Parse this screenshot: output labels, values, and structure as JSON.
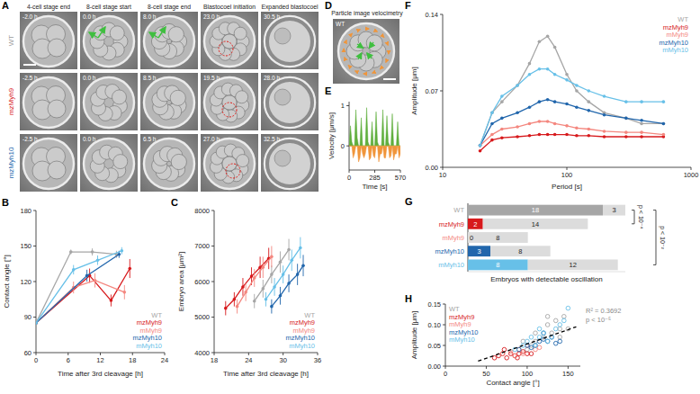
{
  "panel_labels": [
    "A",
    "B",
    "C",
    "D",
    "E",
    "F",
    "G",
    "H"
  ],
  "panel_a": {
    "columns": [
      "4-cell stage end",
      "8-cell stage start",
      "8-cell stage end",
      "Blastocoel initiation",
      "Expanded blastocoel"
    ],
    "rows": [
      {
        "label": "WT",
        "color": "#9a9a9a",
        "times": [
          "-2.0 h",
          "0.0 h",
          "8.0 h",
          "23.0 h",
          "30.5 h"
        ]
      },
      {
        "label": "mzMyh9",
        "color": "#d7191c",
        "times": [
          "-2.5 h",
          "0.0 h",
          "8.5 h",
          "19.5 h",
          "28.0 h"
        ]
      },
      {
        "label": "mzMyh10",
        "color": "#2166ac",
        "times": [
          "-2.5 h",
          "0.0 h",
          "6.5 h",
          "27.0 h",
          "32.5 h"
        ]
      }
    ]
  },
  "panel_d": {
    "title": "Particle image velocimetry",
    "label": "WT"
  },
  "chart_data": [
    {
      "type": "line",
      "x_label": "Time after 3rd cleavage [h]",
      "y_label": "Contact angle [°]",
      "xlim": [
        0,
        24
      ],
      "xticks": [
        0,
        6,
        12,
        18,
        24
      ],
      "ylim": [
        60,
        180
      ],
      "yticks": [
        60,
        90,
        120,
        150,
        180
      ],
      "legend": "bottom-right",
      "marker": "circle",
      "series": [
        {
          "name": "WT",
          "color": "#a6a6a6",
          "x": [
            0,
            6.5,
            10.5,
            15
          ],
          "values": [
            85,
            145,
            145,
            143
          ],
          "errors": [
            1,
            2,
            3,
            3
          ]
        },
        {
          "name": "mzMyh9",
          "color": "#d7191c",
          "x": [
            0,
            10,
            14,
            17.5
          ],
          "values": [
            85,
            125,
            104,
            131
          ],
          "errors": [
            1,
            6,
            5,
            8
          ]
        },
        {
          "name": "mMyh9",
          "color": "#f4877f",
          "x": [
            0,
            7,
            11,
            16.5
          ],
          "values": [
            85,
            115,
            121,
            111
          ],
          "errors": [
            1,
            5,
            6,
            6
          ]
        },
        {
          "name": "mzMyh10",
          "color": "#2166ac",
          "x": [
            0,
            9.5,
            15.5
          ],
          "values": [
            85,
            125,
            143
          ],
          "errors": [
            1,
            5,
            3
          ]
        },
        {
          "name": "mMyh10",
          "color": "#67c0e8",
          "x": [
            0,
            7,
            11.5,
            16
          ],
          "values": [
            85,
            130,
            138,
            146
          ],
          "errors": [
            1,
            4,
            4,
            3
          ]
        }
      ]
    },
    {
      "type": "line",
      "x_label": "Time after 3rd cleavage [h]",
      "y_label": "Embryo area [μm²]",
      "xlim": [
        18,
        36
      ],
      "xticks": [
        18,
        24,
        30,
        36
      ],
      "ylim": [
        4000,
        8000
      ],
      "yticks": [
        4000,
        5000,
        6000,
        7000,
        8000
      ],
      "legend": "bottom-right",
      "marker": "circle",
      "series": [
        {
          "name": "WT",
          "color": "#a6a6a6",
          "x": [
            25,
            26.5,
            28,
            29.5,
            31
          ],
          "values": [
            5450,
            5800,
            6200,
            6550,
            6900
          ],
          "errors": [
            200,
            250,
            250,
            300,
            300
          ]
        },
        {
          "name": "mzMyh9",
          "color": "#d7191c",
          "x": [
            20,
            21.5,
            23,
            24.5,
            26,
            27.5
          ],
          "values": [
            5250,
            5500,
            5850,
            6150,
            6400,
            6650
          ],
          "errors": [
            200,
            200,
            250,
            250,
            300,
            300
          ]
        },
        {
          "name": "mMyh9",
          "color": "#f4877f",
          "x": [
            22,
            23.5,
            25,
            26.5,
            28
          ],
          "values": [
            5300,
            5700,
            6100,
            6400,
            6700
          ],
          "errors": [
            200,
            250,
            250,
            300,
            300
          ]
        },
        {
          "name": "mzMyh10",
          "color": "#2166ac",
          "x": [
            28,
            29.5,
            31,
            32.5,
            33.5
          ],
          "values": [
            5300,
            5600,
            5950,
            6200,
            6450
          ],
          "errors": [
            200,
            250,
            250,
            300,
            300
          ]
        },
        {
          "name": "mMyh10",
          "color": "#67c0e8",
          "x": [
            27,
            28.5,
            30,
            31.5,
            33
          ],
          "values": [
            5500,
            5850,
            6200,
            6600,
            6950
          ],
          "errors": [
            200,
            250,
            250,
            300,
            300
          ]
        }
      ]
    },
    {
      "type": "area",
      "x_label": "Time [s]",
      "y_label": "Velocity [μm/s]",
      "xlim": [
        0,
        570
      ],
      "xticks": [
        0,
        285,
        570
      ],
      "ylim": [
        -0.6,
        1.1
      ],
      "yticks": [
        0,
        1
      ],
      "x": [
        0,
        15,
        30,
        45,
        60,
        75,
        90,
        105,
        120,
        135,
        150,
        165,
        180,
        195,
        210,
        225,
        240,
        255,
        270,
        285,
        300,
        315,
        330,
        345,
        360,
        375,
        390,
        405,
        420,
        435,
        450,
        465,
        480,
        495,
        510,
        525,
        540,
        555,
        570
      ],
      "series": [
        {
          "color": "#5fae3c",
          "values": [
            0,
            0.5,
            0.1,
            0,
            0,
            0.9,
            0.2,
            0,
            0,
            0.7,
            0,
            0,
            0,
            0.95,
            0.1,
            0,
            0,
            0.6,
            0,
            0,
            0.85,
            0.1,
            0,
            0,
            0,
            0.9,
            0,
            0,
            0.75,
            0.1,
            0,
            0,
            0.8,
            0,
            0,
            0,
            0.6,
            0,
            0
          ]
        },
        {
          "color": "#f0953a",
          "values": [
            0,
            0,
            0,
            -0.3,
            -0.2,
            0,
            0,
            -0.4,
            -0.3,
            0,
            -0.2,
            -0.3,
            -0.2,
            0,
            0,
            -0.35,
            -0.3,
            0,
            -0.25,
            -0.3,
            0,
            0,
            -0.4,
            -0.2,
            -0.2,
            0,
            -0.3,
            -0.3,
            0,
            0,
            -0.3,
            -0.25,
            0,
            -0.35,
            -0.2,
            -0.2,
            0,
            -0.3,
            -0.2
          ]
        }
      ]
    },
    {
      "type": "line",
      "log": "x",
      "x_label": "Period [s]",
      "y_label": "Amplitude [μm]",
      "xlim": [
        10,
        1000
      ],
      "xticks": [
        10,
        100,
        1000
      ],
      "ylim": [
        0,
        0.14
      ],
      "yticks": [
        {
          "value": 0,
          "label": "0.00"
        },
        0.07,
        0.14
      ],
      "legend": "top-right",
      "marker": "circle",
      "x": [
        20,
        25,
        30,
        40,
        50,
        60,
        70,
        80,
        100,
        120,
        150,
        200,
        300,
        400,
        600
      ],
      "series": [
        {
          "name": "WT",
          "color": "#a6a6a6",
          "values": [
            0.02,
            0.05,
            0.06,
            0.075,
            0.095,
            0.115,
            0.12,
            0.11,
            0.085,
            0.07,
            0.06,
            0.05,
            0.045,
            0.04,
            0.04
          ]
        },
        {
          "name": "mzMyh9",
          "color": "#d7191c",
          "values": [
            0.015,
            0.025,
            0.027,
            0.028,
            0.029,
            0.03,
            0.03,
            0.03,
            0.03,
            0.029,
            0.029,
            0.028,
            0.028,
            0.028,
            0.028
          ]
        },
        {
          "name": "mMyh9",
          "color": "#f4877f",
          "values": [
            0.02,
            0.03,
            0.035,
            0.037,
            0.04,
            0.042,
            0.042,
            0.04,
            0.038,
            0.036,
            0.035,
            0.033,
            0.032,
            0.032,
            0.03
          ]
        },
        {
          "name": "mzMyh10",
          "color": "#2166ac",
          "values": [
            0.02,
            0.04,
            0.045,
            0.05,
            0.055,
            0.06,
            0.062,
            0.06,
            0.058,
            0.055,
            0.052,
            0.048,
            0.045,
            0.043,
            0.04
          ]
        },
        {
          "name": "mMyh10",
          "color": "#67c0e8",
          "values": [
            0.02,
            0.05,
            0.065,
            0.075,
            0.085,
            0.09,
            0.09,
            0.085,
            0.08,
            0.075,
            0.07,
            0.065,
            0.06,
            0.06,
            0.06
          ]
        }
      ]
    },
    {
      "type": "bar",
      "orientation": "horizontal",
      "stacked": true,
      "data_labels": true,
      "tick_labels": false,
      "title": "Embryos with detectable oscillation",
      "categories": [
        "WT",
        "mzMyh9",
        "mMyh9",
        "mzMyh10",
        "mMyh10"
      ],
      "xlim": [
        0,
        21
      ],
      "series": [
        {
          "colors": [
            "#a6a6a6",
            "#d7191c",
            "#f4877f",
            "#2166ac",
            "#67c0e8"
          ],
          "values": [
            18,
            2,
            0,
            3,
            8
          ]
        },
        {
          "color": "#dcdcdc",
          "values": [
            3,
            14,
            8,
            8,
            12
          ]
        }
      ],
      "annotations": [
        "p < 10⁻⁴",
        "p < 10⁻²"
      ]
    },
    {
      "type": "scatter",
      "x_label": "Contact angle [°]",
      "y_label": "Amplitude [μm]",
      "xlim": [
        0,
        165
      ],
      "xticks": [
        0,
        50,
        100,
        150
      ],
      "ylim": [
        0,
        0.15
      ],
      "yticks": [
        {
          "value": 0,
          "label": "0.00"
        },
        0.05,
        {
          "value": 0.1,
          "label": "0.10"
        },
        0.15
      ],
      "legend": "top-left",
      "marker": "circle-open",
      "annotations": [
        "R² = 0.3692",
        "p < 10⁻⁵"
      ],
      "series": [
        {
          "name": "WT",
          "color": "#a6a6a6",
          "x": [
            95,
            105,
            110,
            120,
            125,
            130,
            135,
            140,
            145,
            150,
            110,
            125,
            140,
            100
          ],
          "values": [
            0.06,
            0.05,
            0.08,
            0.07,
            0.1,
            0.08,
            0.11,
            0.09,
            0.12,
            0.09,
            0.06,
            0.12,
            0.07,
            0.04
          ]
        },
        {
          "name": "mzMyh9",
          "color": "#d7191c",
          "x": [
            60,
            65,
            70,
            75,
            80,
            85,
            90,
            95,
            100,
            72,
            88,
            105
          ],
          "values": [
            0.02,
            0.025,
            0.03,
            0.02,
            0.03,
            0.025,
            0.03,
            0.035,
            0.03,
            0.04,
            0.02,
            0.03
          ]
        },
        {
          "name": "mMyh9",
          "color": "#f4877f",
          "x": [
            70,
            80,
            90,
            95,
            100,
            110,
            115,
            85
          ],
          "values": [
            0.03,
            0.035,
            0.04,
            0.03,
            0.05,
            0.04,
            0.045,
            0.025
          ]
        },
        {
          "name": "mzMyh10",
          "color": "#2166ac",
          "x": [
            90,
            100,
            110,
            115,
            120,
            125,
            130,
            135,
            105,
            120,
            140
          ],
          "values": [
            0.04,
            0.05,
            0.05,
            0.06,
            0.065,
            0.06,
            0.07,
            0.055,
            0.045,
            0.08,
            0.06
          ]
        },
        {
          "name": "mMyh10",
          "color": "#67c0e8",
          "x": [
            85,
            95,
            100,
            110,
            115,
            120,
            130,
            135,
            140,
            145,
            150,
            125,
            105,
            115
          ],
          "values": [
            0.04,
            0.05,
            0.06,
            0.05,
            0.07,
            0.08,
            0.07,
            0.09,
            0.1,
            0.11,
            0.14,
            0.06,
            0.07,
            0.09
          ]
        },
        {
          "type": "line",
          "color": "#000000",
          "line_style": "dashed",
          "marker": "none",
          "x": [
            40,
            160
          ],
          "values": [
            0.012,
            0.095
          ]
        }
      ]
    }
  ]
}
